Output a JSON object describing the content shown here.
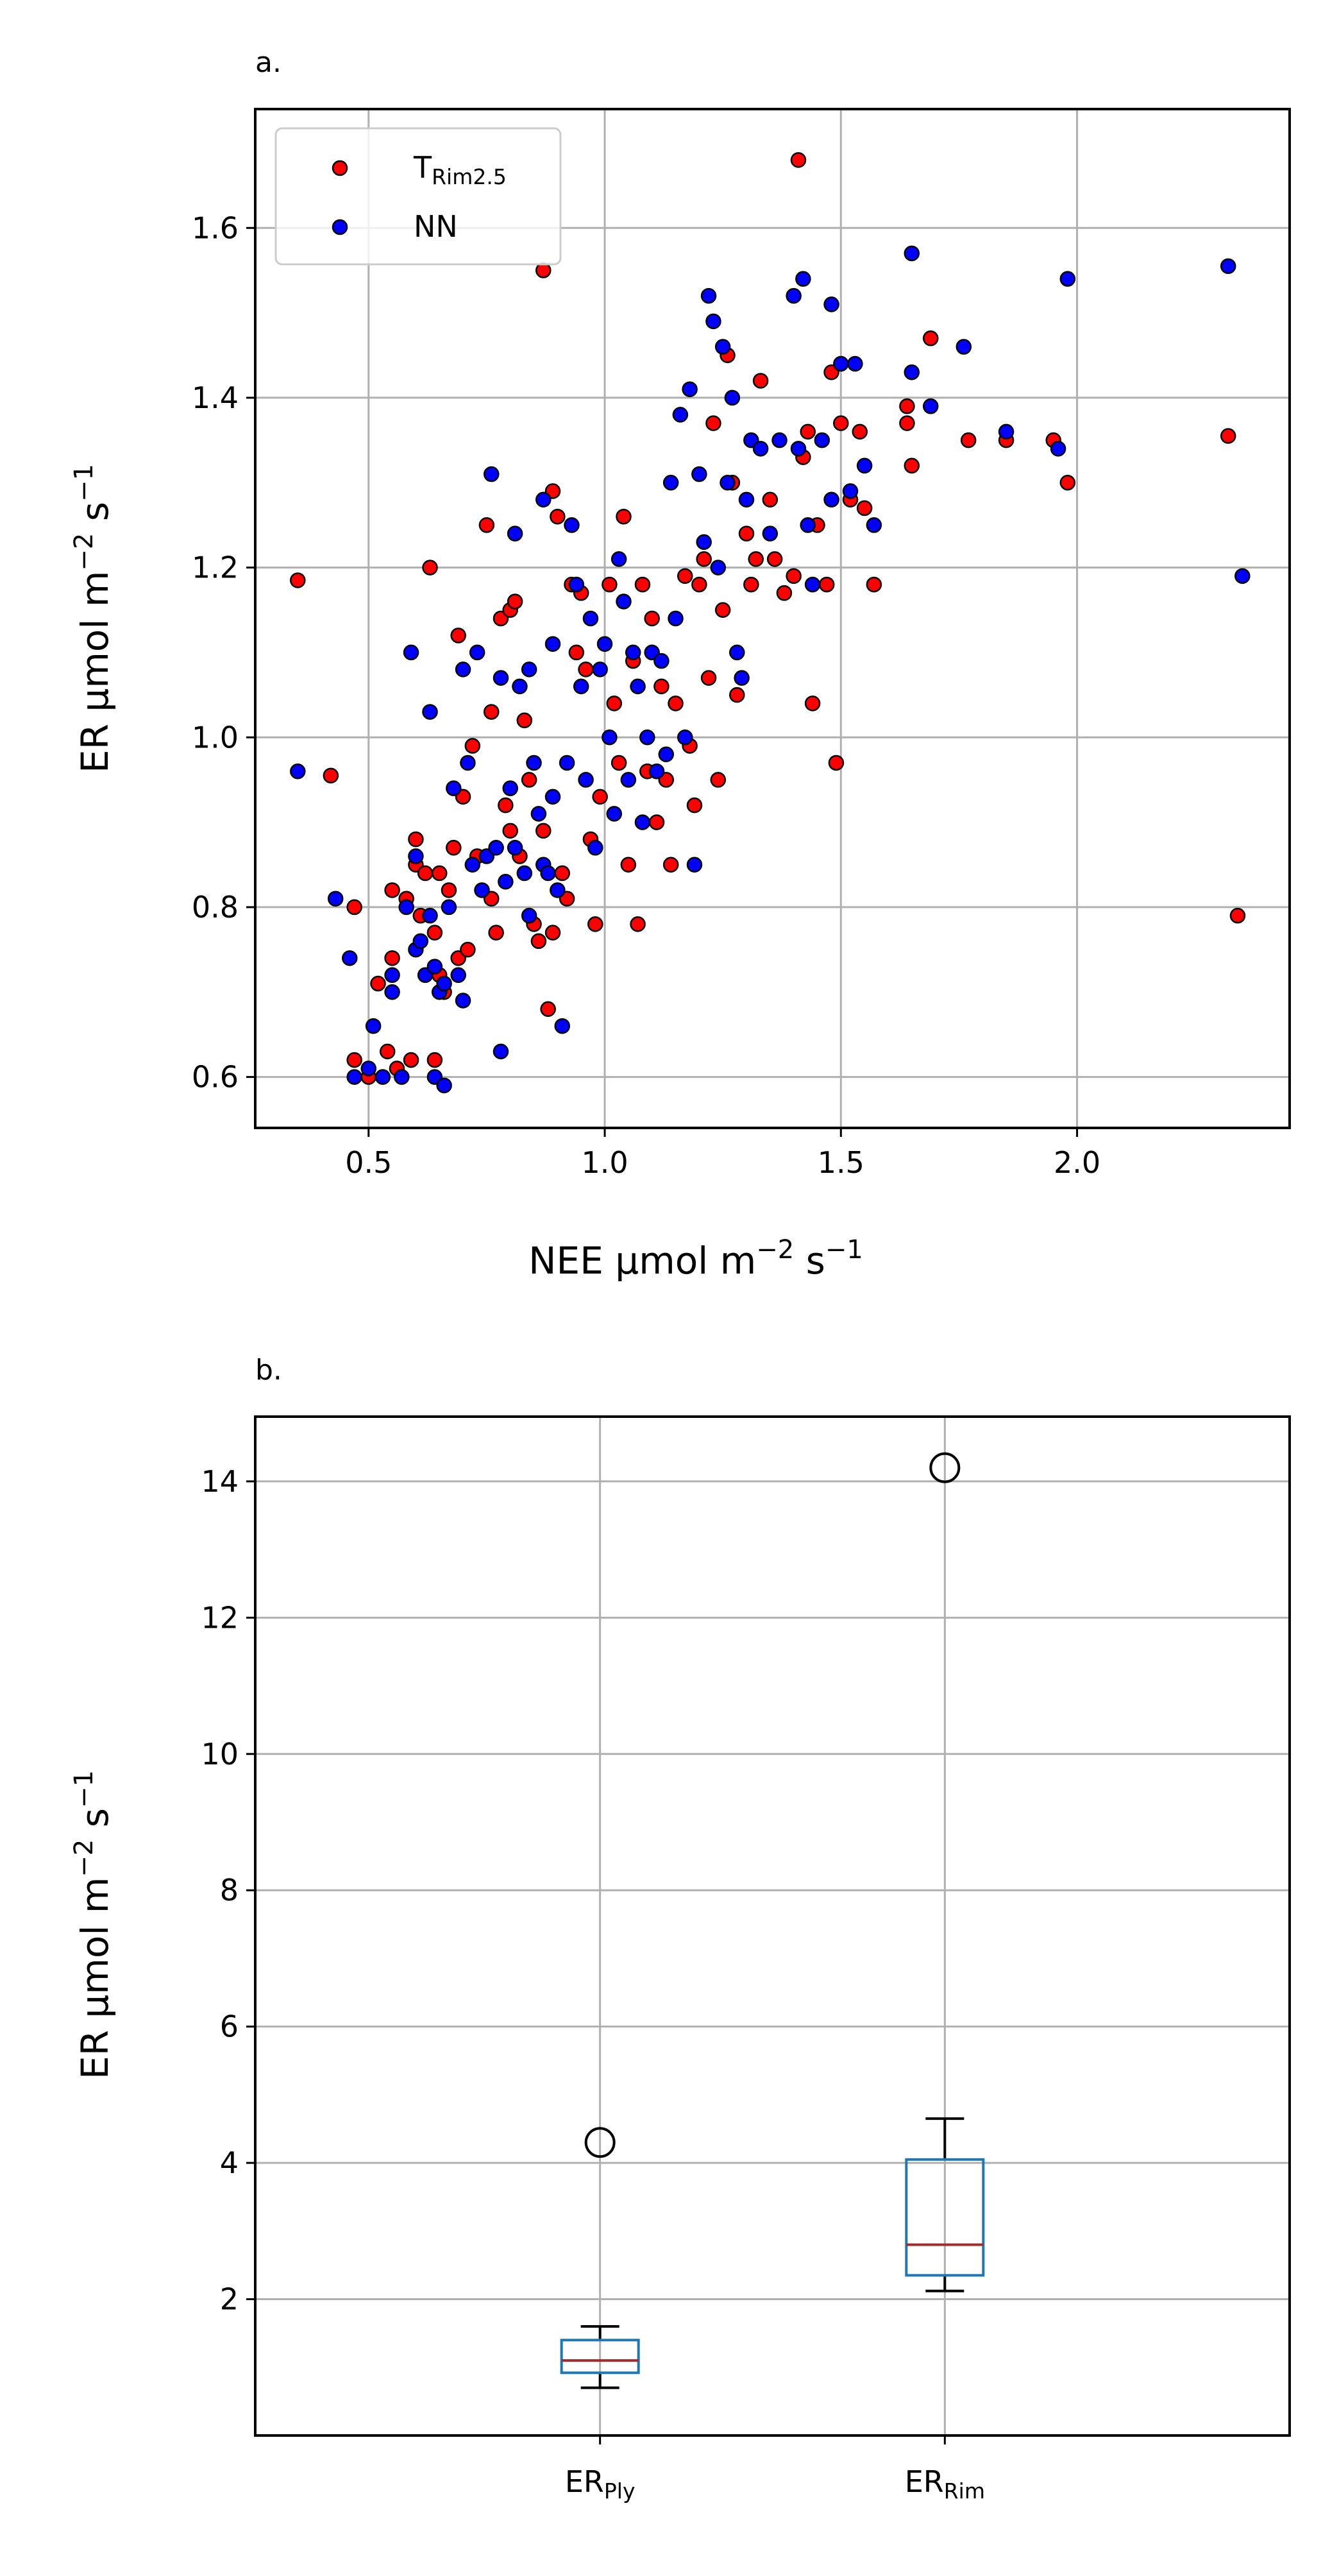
{
  "chart_data": [
    {
      "type": "scatter",
      "panel_label": "a.",
      "xlabel_main": "NEE μmol m",
      "xlabel_exp1": "−2",
      "xlabel_mid": " s",
      "xlabel_exp2": "−1",
      "ylabel_main": "ER μmol m",
      "ylabel_exp1": "−2",
      "ylabel_mid": " s",
      "ylabel_exp2": "−1",
      "xlim": [
        0.26,
        2.45
      ],
      "ylim": [
        0.54,
        1.74
      ],
      "xticks": [
        0.5,
        1.0,
        1.5,
        2.0
      ],
      "xtick_labels": [
        "0.5",
        "1.0",
        "1.5",
        "2.0"
      ],
      "yticks": [
        0.6,
        0.8,
        1.0,
        1.2,
        1.4,
        1.6
      ],
      "ytick_labels": [
        "0.6",
        "0.8",
        "1.0",
        "1.2",
        "1.4",
        "1.6"
      ],
      "grid": true,
      "legend_position": "top-left",
      "series": [
        {
          "name_main": "T",
          "name_sub": "Rim2.5",
          "color": "#ff0000",
          "points": [
            [
              0.35,
              1.185
            ],
            [
              0.42,
              0.955
            ],
            [
              0.47,
              0.8
            ],
            [
              0.47,
              0.62
            ],
            [
              0.5,
              0.6
            ],
            [
              0.52,
              0.71
            ],
            [
              0.54,
              0.63
            ],
            [
              0.55,
              0.82
            ],
            [
              0.55,
              0.74
            ],
            [
              0.56,
              0.61
            ],
            [
              0.58,
              0.81
            ],
            [
              0.59,
              0.62
            ],
            [
              0.6,
              0.88
            ],
            [
              0.6,
              0.85
            ],
            [
              0.61,
              0.79
            ],
            [
              0.62,
              0.84
            ],
            [
              0.63,
              1.2
            ],
            [
              0.64,
              0.77
            ],
            [
              0.64,
              0.62
            ],
            [
              0.65,
              0.72
            ],
            [
              0.65,
              0.84
            ],
            [
              0.66,
              0.7
            ],
            [
              0.67,
              0.82
            ],
            [
              0.68,
              0.87
            ],
            [
              0.69,
              1.12
            ],
            [
              0.69,
              0.74
            ],
            [
              0.7,
              0.93
            ],
            [
              0.71,
              0.75
            ],
            [
              0.72,
              0.99
            ],
            [
              0.73,
              0.86
            ],
            [
              0.75,
              1.25
            ],
            [
              0.76,
              1.03
            ],
            [
              0.76,
              0.81
            ],
            [
              0.77,
              0.77
            ],
            [
              0.78,
              1.14
            ],
            [
              0.79,
              0.92
            ],
            [
              0.8,
              1.15
            ],
            [
              0.8,
              0.89
            ],
            [
              0.81,
              1.16
            ],
            [
              0.82,
              0.86
            ],
            [
              0.83,
              1.02
            ],
            [
              0.84,
              0.95
            ],
            [
              0.85,
              0.78
            ],
            [
              0.86,
              0.76
            ],
            [
              0.87,
              1.55
            ],
            [
              0.87,
              0.89
            ],
            [
              0.88,
              0.68
            ],
            [
              0.89,
              1.29
            ],
            [
              0.89,
              0.77
            ],
            [
              0.9,
              1.26
            ],
            [
              0.91,
              0.84
            ],
            [
              0.92,
              0.81
            ],
            [
              0.93,
              1.18
            ],
            [
              0.94,
              1.1
            ],
            [
              0.95,
              1.17
            ],
            [
              0.96,
              1.08
            ],
            [
              0.97,
              0.88
            ],
            [
              0.98,
              0.78
            ],
            [
              0.99,
              0.93
            ],
            [
              1.01,
              1.18
            ],
            [
              1.02,
              1.04
            ],
            [
              1.03,
              0.97
            ],
            [
              1.04,
              1.26
            ],
            [
              1.05,
              0.85
            ],
            [
              1.06,
              1.09
            ],
            [
              1.07,
              0.78
            ],
            [
              1.08,
              1.18
            ],
            [
              1.09,
              0.96
            ],
            [
              1.1,
              1.14
            ],
            [
              1.11,
              0.9
            ],
            [
              1.12,
              1.06
            ],
            [
              1.13,
              0.95
            ],
            [
              1.14,
              0.85
            ],
            [
              1.15,
              1.04
            ],
            [
              1.17,
              1.19
            ],
            [
              1.18,
              0.99
            ],
            [
              1.19,
              0.92
            ],
            [
              1.2,
              1.18
            ],
            [
              1.21,
              1.21
            ],
            [
              1.22,
              1.07
            ],
            [
              1.23,
              1.37
            ],
            [
              1.24,
              0.95
            ],
            [
              1.25,
              1.15
            ],
            [
              1.26,
              1.45
            ],
            [
              1.27,
              1.3
            ],
            [
              1.28,
              1.05
            ],
            [
              1.3,
              1.24
            ],
            [
              1.31,
              1.18
            ],
            [
              1.32,
              1.21
            ],
            [
              1.33,
              1.42
            ],
            [
              1.35,
              1.28
            ],
            [
              1.36,
              1.21
            ],
            [
              1.38,
              1.17
            ],
            [
              1.4,
              1.19
            ],
            [
              1.41,
              1.68
            ],
            [
              1.42,
              1.33
            ],
            [
              1.43,
              1.36
            ],
            [
              1.44,
              1.04
            ],
            [
              1.45,
              1.25
            ],
            [
              1.47,
              1.18
            ],
            [
              1.48,
              1.43
            ],
            [
              1.49,
              0.97
            ],
            [
              1.5,
              1.37
            ],
            [
              1.52,
              1.28
            ],
            [
              1.54,
              1.36
            ],
            [
              1.55,
              1.27
            ],
            [
              1.57,
              1.18
            ],
            [
              1.64,
              1.37
            ],
            [
              1.64,
              1.39
            ],
            [
              1.65,
              1.32
            ],
            [
              1.69,
              1.47
            ],
            [
              1.77,
              1.35
            ],
            [
              1.85,
              1.35
            ],
            [
              1.95,
              1.35
            ],
            [
              1.98,
              1.3
            ],
            [
              2.32,
              1.355
            ],
            [
              2.34,
              0.79
            ]
          ]
        },
        {
          "name": "NN",
          "color": "#0000ff",
          "points": [
            [
              0.35,
              0.96
            ],
            [
              0.43,
              0.81
            ],
            [
              0.46,
              0.74
            ],
            [
              0.47,
              0.6
            ],
            [
              0.5,
              0.61
            ],
            [
              0.51,
              0.66
            ],
            [
              0.53,
              0.6
            ],
            [
              0.55,
              0.7
            ],
            [
              0.55,
              0.72
            ],
            [
              0.57,
              0.6
            ],
            [
              0.58,
              0.8
            ],
            [
              0.59,
              1.1
            ],
            [
              0.6,
              0.86
            ],
            [
              0.6,
              0.75
            ],
            [
              0.61,
              0.76
            ],
            [
              0.62,
              0.72
            ],
            [
              0.63,
              0.79
            ],
            [
              0.63,
              1.03
            ],
            [
              0.64,
              0.73
            ],
            [
              0.64,
              0.6
            ],
            [
              0.65,
              0.7
            ],
            [
              0.66,
              0.59
            ],
            [
              0.66,
              0.71
            ],
            [
              0.67,
              0.8
            ],
            [
              0.68,
              0.94
            ],
            [
              0.69,
              0.72
            ],
            [
              0.7,
              0.69
            ],
            [
              0.7,
              1.08
            ],
            [
              0.71,
              0.97
            ],
            [
              0.72,
              0.85
            ],
            [
              0.73,
              1.1
            ],
            [
              0.74,
              0.82
            ],
            [
              0.75,
              0.86
            ],
            [
              0.76,
              1.31
            ],
            [
              0.77,
              0.87
            ],
            [
              0.78,
              0.63
            ],
            [
              0.78,
              1.07
            ],
            [
              0.79,
              0.83
            ],
            [
              0.8,
              0.94
            ],
            [
              0.81,
              1.24
            ],
            [
              0.81,
              0.87
            ],
            [
              0.82,
              1.06
            ],
            [
              0.83,
              0.84
            ],
            [
              0.84,
              1.08
            ],
            [
              0.84,
              0.79
            ],
            [
              0.85,
              0.97
            ],
            [
              0.86,
              0.91
            ],
            [
              0.87,
              1.28
            ],
            [
              0.87,
              0.85
            ],
            [
              0.88,
              0.84
            ],
            [
              0.89,
              1.11
            ],
            [
              0.89,
              0.93
            ],
            [
              0.9,
              0.82
            ],
            [
              0.91,
              0.66
            ],
            [
              0.92,
              0.97
            ],
            [
              0.93,
              1.25
            ],
            [
              0.94,
              1.18
            ],
            [
              0.95,
              1.06
            ],
            [
              0.96,
              0.95
            ],
            [
              0.97,
              1.14
            ],
            [
              0.98,
              0.87
            ],
            [
              0.99,
              1.08
            ],
            [
              1.0,
              1.11
            ],
            [
              1.01,
              1.0
            ],
            [
              1.02,
              0.91
            ],
            [
              1.03,
              1.21
            ],
            [
              1.04,
              1.16
            ],
            [
              1.05,
              0.95
            ],
            [
              1.06,
              1.1
            ],
            [
              1.07,
              1.06
            ],
            [
              1.08,
              0.9
            ],
            [
              1.09,
              1.0
            ],
            [
              1.1,
              1.1
            ],
            [
              1.11,
              0.96
            ],
            [
              1.12,
              1.09
            ],
            [
              1.13,
              0.98
            ],
            [
              1.14,
              1.3
            ],
            [
              1.15,
              1.14
            ],
            [
              1.16,
              1.38
            ],
            [
              1.17,
              1.0
            ],
            [
              1.18,
              1.41
            ],
            [
              1.19,
              0.85
            ],
            [
              1.2,
              1.31
            ],
            [
              1.21,
              1.23
            ],
            [
              1.22,
              1.52
            ],
            [
              1.23,
              1.49
            ],
            [
              1.24,
              1.2
            ],
            [
              1.25,
              1.46
            ],
            [
              1.26,
              1.3
            ],
            [
              1.27,
              1.4
            ],
            [
              1.28,
              1.1
            ],
            [
              1.29,
              1.07
            ],
            [
              1.3,
              1.28
            ],
            [
              1.31,
              1.35
            ],
            [
              1.33,
              1.34
            ],
            [
              1.35,
              1.24
            ],
            [
              1.37,
              1.35
            ],
            [
              1.4,
              1.52
            ],
            [
              1.41,
              1.34
            ],
            [
              1.42,
              1.54
            ],
            [
              1.43,
              1.25
            ],
            [
              1.44,
              1.18
            ],
            [
              1.46,
              1.35
            ],
            [
              1.48,
              1.28
            ],
            [
              1.48,
              1.51
            ],
            [
              1.5,
              1.44
            ],
            [
              1.52,
              1.29
            ],
            [
              1.53,
              1.44
            ],
            [
              1.55,
              1.32
            ],
            [
              1.57,
              1.25
            ],
            [
              1.65,
              1.57
            ],
            [
              1.65,
              1.43
            ],
            [
              1.69,
              1.39
            ],
            [
              1.76,
              1.46
            ],
            [
              1.85,
              1.36
            ],
            [
              1.96,
              1.34
            ],
            [
              1.98,
              1.54
            ],
            [
              2.32,
              1.555
            ],
            [
              2.35,
              1.19
            ]
          ]
        }
      ]
    },
    {
      "type": "box",
      "panel_label": "b.",
      "ylabel_main": "ER μmol m",
      "ylabel_exp1": "−2",
      "ylabel_mid": " s",
      "ylabel_exp2": "−1",
      "ylim": [
        0.0,
        14.95
      ],
      "yticks": [
        2,
        4,
        6,
        8,
        10,
        12,
        14
      ],
      "ytick_labels": [
        "2",
        "4",
        "6",
        "8",
        "10",
        "12",
        "14"
      ],
      "grid": true,
      "box_color": "#1f77b4",
      "median_color": "#a52a2a",
      "boxes": [
        {
          "label_main": "ER",
          "label_sub": "Ply",
          "whisker_low": 0.7,
          "q1": 0.92,
          "median": 1.1,
          "q3": 1.4,
          "whisker_high": 1.6,
          "outliers": [
            4.3
          ]
        },
        {
          "label_main": "ER",
          "label_sub": "Rim",
          "whisker_low": 2.12,
          "q1": 2.35,
          "median": 2.8,
          "q3": 4.05,
          "whisker_high": 4.65,
          "outliers": [
            14.2
          ]
        }
      ]
    }
  ]
}
